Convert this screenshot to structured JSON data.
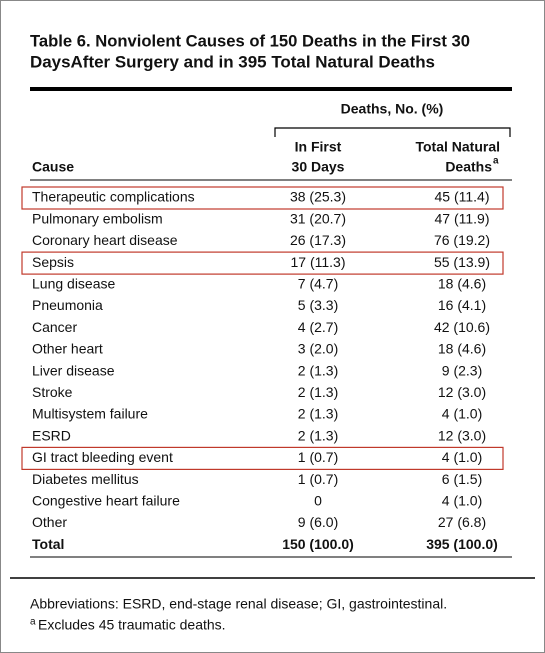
{
  "header": {
    "title": [
      "Table 6. Nonviolent Causes of 150 Deaths in the First 30",
      "DaysAfter Surgery and in 395 Total Natural Deaths"
    ]
  },
  "table": {
    "group_header": "Deaths, No. (%)",
    "columns": [
      {
        "lines": [
          "Cause"
        ]
      },
      {
        "lines": [
          "In First",
          "30 Days"
        ]
      },
      {
        "lines": [
          "Total Natural",
          "Deaths"
        ],
        "superscript": "a"
      }
    ],
    "rows": [
      {
        "cells": [
          "Therapeutic complications",
          "38 (25.3)",
          "45 (11.4)"
        ],
        "highlighted": true
      },
      {
        "cells": [
          "Pulmonary embolism",
          "31 (20.7)",
          "47 (11.9)"
        ]
      },
      {
        "cells": [
          "Coronary heart disease",
          "26 (17.3)",
          "76 (19.2)"
        ]
      },
      {
        "cells": [
          "Sepsis",
          "17 (11.3)",
          "55 (13.9)"
        ],
        "highlighted": true
      },
      {
        "cells": [
          "Lung disease",
          "7 (4.7)",
          "18 (4.6)"
        ]
      },
      {
        "cells": [
          "Pneumonia",
          "5 (3.3)",
          "16 (4.1)"
        ]
      },
      {
        "cells": [
          "Cancer",
          "4 (2.7)",
          "42 (10.6)"
        ]
      },
      {
        "cells": [
          "Other heart",
          "3 (2.0)",
          "18 (4.6)"
        ]
      },
      {
        "cells": [
          "Liver disease",
          "2 (1.3)",
          "9 (2.3)"
        ]
      },
      {
        "cells": [
          "Stroke",
          "2 (1.3)",
          "12 (3.0)"
        ]
      },
      {
        "cells": [
          "Multisystem failure",
          "2 (1.3)",
          "4 (1.0)"
        ]
      },
      {
        "cells": [
          "ESRD",
          "2 (1.3)",
          "12 (3.0)"
        ]
      },
      {
        "cells": [
          "GI tract bleeding event",
          "1 (0.7)",
          "4 (1.0)"
        ],
        "highlighted": true
      },
      {
        "cells": [
          "Diabetes mellitus",
          "1 (0.7)",
          "6 (1.5)"
        ]
      },
      {
        "cells": [
          "Congestive heart failure",
          "0",
          "4 (1.0)"
        ]
      },
      {
        "cells": [
          "Other",
          "9 (6.0)",
          "27 (6.8)"
        ]
      },
      {
        "cells": [
          "Total",
          "150 (100.0)",
          "395 (100.0)"
        ],
        "bold": true
      }
    ]
  },
  "footnotes": {
    "abbreviations": "Abbreviations: ESRD, end-stage renal disease; GI, gastrointestinal.",
    "marker": "a",
    "note": "Excludes 45 traumatic deaths."
  }
}
